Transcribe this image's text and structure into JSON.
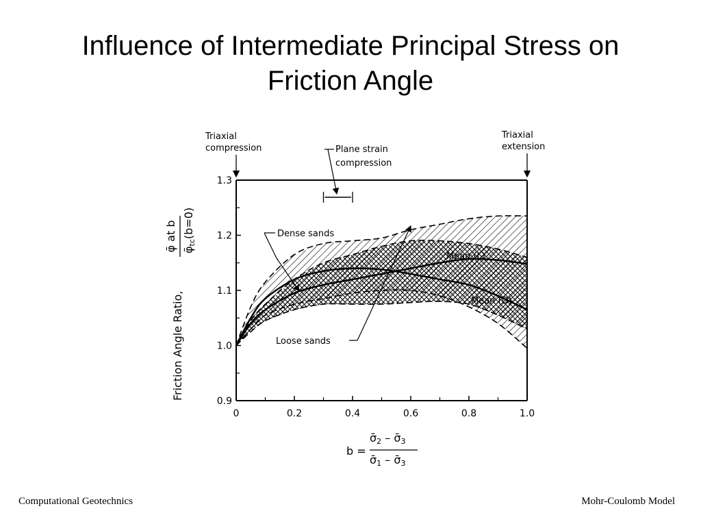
{
  "slide": {
    "title_lines": [
      "Influence of Intermediate Principal Stress on",
      "Friction Angle"
    ],
    "footer_left": "Computational Geotechnics",
    "footer_right": "Mohr-Coulomb Model"
  },
  "chart_data": {
    "type": "line",
    "xlim": [
      0,
      1.0
    ],
    "ylim": [
      0.9,
      1.3
    ],
    "x_ticks": [
      "0",
      "0.2",
      "0.4",
      "0.6",
      "0.8",
      "1.0"
    ],
    "y_ticks": [
      "0.9",
      "1.0",
      "1.1",
      "1.2",
      "1.3"
    ],
    "ylabel_text": "Friction  Angle Ratio,",
    "ylabel_numerator": "φ̄ at b",
    "ylabel_denominator_symbol": "φ̄",
    "ylabel_denominator_sub": "tc",
    "ylabel_denominator_tail": "(b=0)",
    "xlabel": {
      "prefix": "b =",
      "numerator": [
        "σ̄",
        "2",
        " – ",
        "σ̄",
        "3"
      ],
      "denominator": [
        "σ̄",
        "1",
        " – ",
        "σ̄",
        "3"
      ]
    },
    "series": [
      {
        "name": "Mean (L)",
        "style": "solid",
        "points": [
          [
            0,
            1.0
          ],
          [
            0.05,
            1.04
          ],
          [
            0.1,
            1.065
          ],
          [
            0.2,
            1.095
          ],
          [
            0.3,
            1.11
          ],
          [
            0.4,
            1.12
          ],
          [
            0.5,
            1.13
          ],
          [
            0.6,
            1.14
          ],
          [
            0.7,
            1.15
          ],
          [
            0.8,
            1.157
          ],
          [
            0.9,
            1.155
          ],
          [
            1.0,
            1.148
          ]
        ]
      },
      {
        "name": "Mean (D)",
        "style": "solid",
        "points": [
          [
            0,
            1.0
          ],
          [
            0.05,
            1.05
          ],
          [
            0.1,
            1.085
          ],
          [
            0.2,
            1.12
          ],
          [
            0.3,
            1.135
          ],
          [
            0.4,
            1.14
          ],
          [
            0.5,
            1.138
          ],
          [
            0.6,
            1.13
          ],
          [
            0.7,
            1.12
          ],
          [
            0.8,
            1.11
          ],
          [
            0.9,
            1.09
          ],
          [
            1.0,
            1.065
          ]
        ]
      }
    ],
    "bands": [
      {
        "name": "Dense sands",
        "fill": "hatch",
        "upper": [
          [
            0,
            1.0
          ],
          [
            0.05,
            1.07
          ],
          [
            0.1,
            1.115
          ],
          [
            0.2,
            1.165
          ],
          [
            0.3,
            1.185
          ],
          [
            0.4,
            1.19
          ],
          [
            0.5,
            1.195
          ],
          [
            0.6,
            1.21
          ],
          [
            0.7,
            1.22
          ],
          [
            0.8,
            1.23
          ],
          [
            0.9,
            1.235
          ],
          [
            1.0,
            1.235
          ]
        ],
        "lower": [
          [
            0,
            1.0
          ],
          [
            0.05,
            1.03
          ],
          [
            0.1,
            1.055
          ],
          [
            0.2,
            1.075
          ],
          [
            0.3,
            1.085
          ],
          [
            0.4,
            1.095
          ],
          [
            0.5,
            1.1
          ],
          [
            0.6,
            1.1
          ],
          [
            0.7,
            1.09
          ],
          [
            0.8,
            1.07
          ],
          [
            0.9,
            1.04
          ],
          [
            1.0,
            0.995
          ]
        ]
      },
      {
        "name": "Loose sands",
        "fill": "crosshatch",
        "upper": [
          [
            0,
            1.0
          ],
          [
            0.05,
            1.045
          ],
          [
            0.1,
            1.075
          ],
          [
            0.2,
            1.12
          ],
          [
            0.3,
            1.15
          ],
          [
            0.4,
            1.165
          ],
          [
            0.5,
            1.18
          ],
          [
            0.6,
            1.19
          ],
          [
            0.7,
            1.19
          ],
          [
            0.8,
            1.185
          ],
          [
            0.9,
            1.175
          ],
          [
            1.0,
            1.16
          ]
        ],
        "lower": [
          [
            0,
            1.0
          ],
          [
            0.05,
            1.025
          ],
          [
            0.1,
            1.045
          ],
          [
            0.2,
            1.065
          ],
          [
            0.3,
            1.075
          ],
          [
            0.4,
            1.075
          ],
          [
            0.5,
            1.075
          ],
          [
            0.6,
            1.078
          ],
          [
            0.7,
            1.08
          ],
          [
            0.8,
            1.075
          ],
          [
            0.9,
            1.055
          ],
          [
            1.0,
            1.03
          ]
        ]
      }
    ],
    "annotations": {
      "triaxial_compression": [
        "Triaxial",
        "compression"
      ],
      "triaxial_extension": [
        "Triaxial",
        "extension"
      ],
      "plane_strain": [
        "Plane strain",
        "compression"
      ],
      "plane_strain_range": [
        0.3,
        0.4
      ],
      "dense_label": "Dense sands",
      "loose_label": "Loose sands",
      "mean_l_label": "Mean (L)",
      "mean_d_label": "Mean (D)"
    }
  }
}
